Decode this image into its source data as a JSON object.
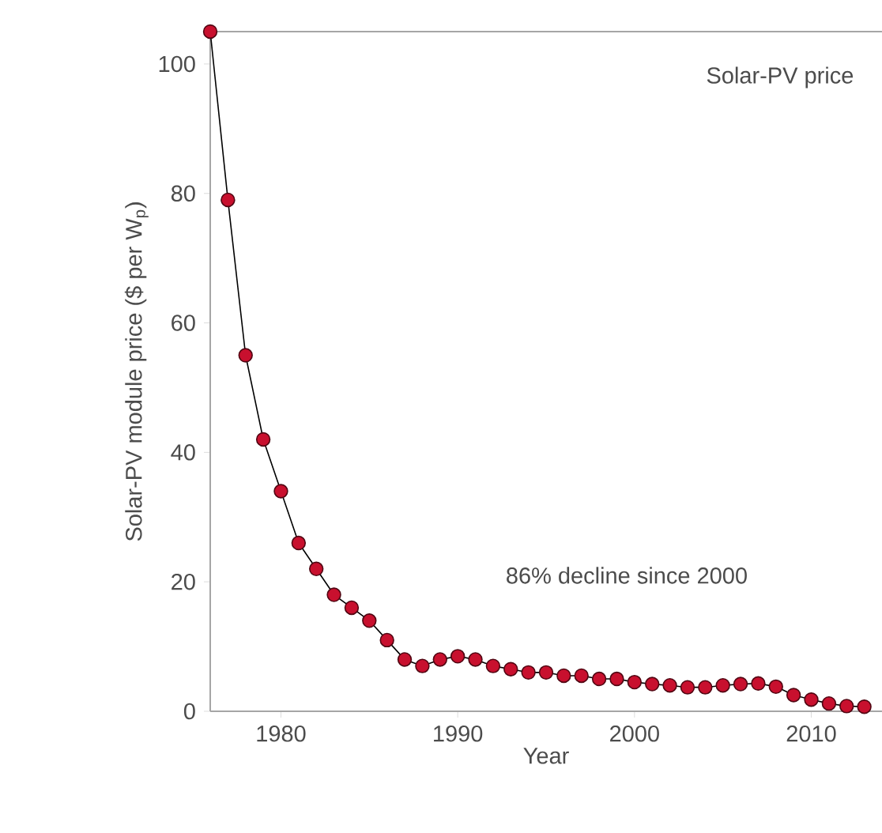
{
  "chart_data": {
    "type": "line",
    "xlabel": "Year",
    "ylabel": "Solar-PV module price ($ per W$_{p}$)",
    "annotations": [
      "Solar-PV price",
      "86% decline since 2000"
    ],
    "x": [
      1976,
      1977,
      1978,
      1979,
      1980,
      1981,
      1982,
      1983,
      1984,
      1985,
      1986,
      1987,
      1988,
      1989,
      1990,
      1991,
      1992,
      1993,
      1994,
      1995,
      1996,
      1997,
      1998,
      1999,
      2000,
      2001,
      2002,
      2003,
      2004,
      2005,
      2006,
      2007,
      2008,
      2009,
      2010,
      2011,
      2012,
      2013
    ],
    "series": [
      {
        "color": "#c8102e",
        "values": [
          105,
          79,
          55,
          42,
          34,
          26,
          22,
          18,
          16,
          14,
          11,
          8,
          7,
          8,
          8.5,
          8,
          7,
          6.5,
          6,
          6,
          5.5,
          5.5,
          5,
          5,
          4.5,
          4.2,
          4,
          3.7,
          3.7,
          4,
          4.2,
          4.3,
          3.8,
          2.5,
          1.8,
          1.2,
          0.8,
          0.7
        ]
      }
    ],
    "marker": "circle",
    "line_style": "solid",
    "xlim": [
      1976,
      2014
    ],
    "ylim": [
      0,
      105
    ],
    "xticks": [
      1980,
      1990,
      2000,
      2010
    ],
    "yticks": [
      0,
      20,
      40,
      60,
      80,
      100
    ],
    "grid": false
  }
}
